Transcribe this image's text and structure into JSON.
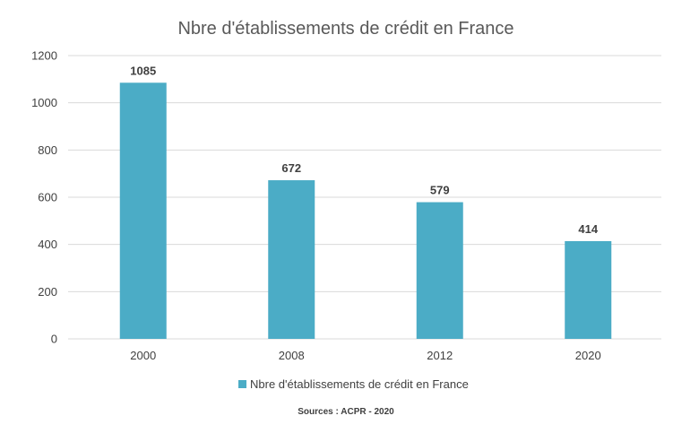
{
  "chart_data": {
    "type": "bar",
    "title": "Nbre d'établissements de crédit en France",
    "categories": [
      "2000",
      "2008",
      "2012",
      "2020"
    ],
    "series": [
      {
        "name": "Nbre d'établissements de crédit en France",
        "values": [
          1085,
          672,
          579,
          414
        ],
        "color": "#4BACC6"
      }
    ],
    "ylim": [
      0,
      1200
    ],
    "yticks": [
      0,
      200,
      400,
      600,
      800,
      1000,
      1200
    ],
    "ytick_labels": [
      "0",
      "200",
      "400",
      "600",
      "800",
      "1000",
      "1200"
    ],
    "grid": true,
    "legend": "bottom",
    "data_labels": true,
    "source": "Sources : ACPR - 2020"
  }
}
